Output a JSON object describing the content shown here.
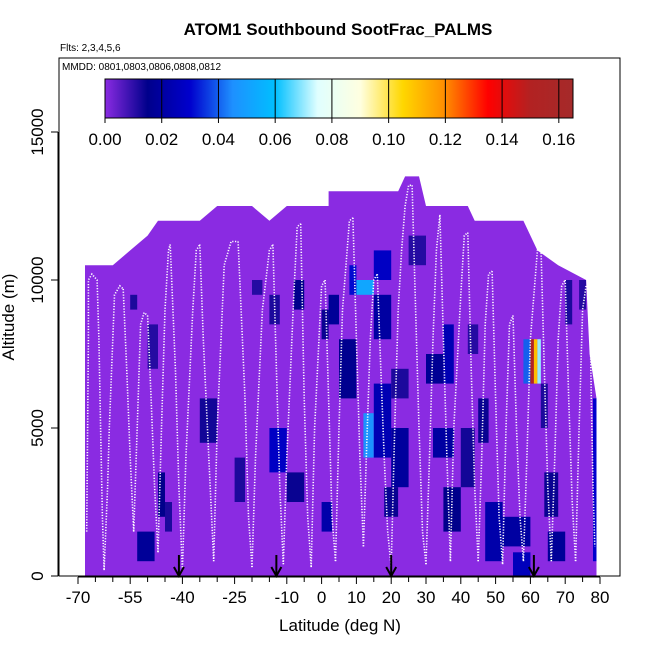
{
  "chart_data": {
    "type": "heatmap",
    "title": "ATOM1 Southbound SootFrac_PALMS",
    "subtitle": "Flts: 2,3,4,5,6",
    "annotation": "MMDD: 0801,0803,0806,0808,0812",
    "xlabel": "Latitude (deg N)",
    "ylabel": "Altitude (m)",
    "xlim": [
      -70,
      80
    ],
    "ylim": [
      0,
      17500
    ],
    "x_ticks": [
      -70,
      -55,
      -40,
      -25,
      -10,
      0,
      10,
      20,
      30,
      40,
      50,
      60,
      70,
      80
    ],
    "x_ticks_minor": [
      -65,
      -60,
      -50,
      -45,
      -35,
      -30,
      -20,
      -15,
      -5,
      5,
      15,
      25,
      35,
      45,
      55,
      65,
      75
    ],
    "y_ticks": [
      0,
      5000,
      10000,
      15000
    ],
    "colorbar": {
      "min": 0.0,
      "max": 0.165,
      "ticks": [
        0.0,
        0.02,
        0.04,
        0.06,
        0.08,
        0.1,
        0.12,
        0.14,
        0.16
      ],
      "tick_labels": [
        "0.00",
        "0.02",
        "0.04",
        "0.06",
        "0.08",
        "0.10",
        "0.12",
        "0.14",
        "0.16"
      ],
      "colors": [
        "#8a2be2",
        "#00008b",
        "#0000cd",
        "#1e90ff",
        "#00bfff",
        "#e0ffff",
        "#ffffe0",
        "#ffd700",
        "#ff8c00",
        "#ff0000",
        "#b22222",
        "#a52a2a"
      ]
    },
    "background_value": 0.0,
    "coverage": [
      [
        -68,
        10500
      ],
      [
        -60,
        10500
      ],
      [
        -55,
        11000
      ],
      [
        -50,
        11500
      ],
      [
        -47,
        12000
      ],
      [
        -35,
        12000
      ],
      [
        -30,
        12500
      ],
      [
        -20,
        12500
      ],
      [
        -15,
        12000
      ],
      [
        -10,
        12500
      ],
      [
        2,
        12500
      ],
      [
        2,
        13000
      ],
      [
        22,
        13000
      ],
      [
        24,
        13500
      ],
      [
        28,
        13500
      ],
      [
        30,
        12500
      ],
      [
        42,
        12500
      ],
      [
        44,
        12000
      ],
      [
        58,
        12000
      ],
      [
        62,
        11000
      ],
      [
        68,
        10500
      ],
      [
        76,
        10000
      ],
      [
        77,
        7500
      ],
      [
        79,
        6000
      ],
      [
        79,
        0
      ],
      [
        -68,
        0
      ]
    ],
    "cells": [
      {
        "lat": [
          -55,
          -53
        ],
        "alt": [
          9000,
          9500
        ],
        "value": 0.012
      },
      {
        "lat": [
          -53,
          -48
        ],
        "alt": [
          500,
          1500
        ],
        "value": 0.018
      },
      {
        "lat": [
          -50,
          -47
        ],
        "alt": [
          7000,
          8500
        ],
        "value": 0.011
      },
      {
        "lat": [
          -47,
          -45
        ],
        "alt": [
          2000,
          3500
        ],
        "value": 0.015
      },
      {
        "lat": [
          -45,
          -43
        ],
        "alt": [
          1500,
          2500
        ],
        "value": 0.012
      },
      {
        "lat": [
          -35,
          -30
        ],
        "alt": [
          4500,
          6000
        ],
        "value": 0.013
      },
      {
        "lat": [
          -25,
          -22
        ],
        "alt": [
          2500,
          4000
        ],
        "value": 0.012
      },
      {
        "lat": [
          -20,
          -17
        ],
        "alt": [
          9500,
          10000
        ],
        "value": 0.011
      },
      {
        "lat": [
          -15,
          -10
        ],
        "alt": [
          3500,
          5000
        ],
        "value": 0.028
      },
      {
        "lat": [
          -15,
          -12
        ],
        "alt": [
          8500,
          9500
        ],
        "value": 0.012
      },
      {
        "lat": [
          -10,
          -5
        ],
        "alt": [
          2500,
          3500
        ],
        "value": 0.014
      },
      {
        "lat": [
          -8,
          -5
        ],
        "alt": [
          9000,
          10000
        ],
        "value": 0.015
      },
      {
        "lat": [
          0,
          2
        ],
        "alt": [
          8000,
          9000
        ],
        "value": 0.014
      },
      {
        "lat": [
          0,
          3
        ],
        "alt": [
          1500,
          2500
        ],
        "value": 0.022
      },
      {
        "lat": [
          2,
          5
        ],
        "alt": [
          8500,
          9500
        ],
        "value": 0.018
      },
      {
        "lat": [
          5,
          10
        ],
        "alt": [
          6000,
          8000
        ],
        "value": 0.016
      },
      {
        "lat": [
          8,
          10
        ],
        "alt": [
          9500,
          10500
        ],
        "value": 0.031
      },
      {
        "lat": [
          10,
          15
        ],
        "alt": [
          9500,
          10000
        ],
        "value": 0.052
      },
      {
        "lat": [
          12,
          15
        ],
        "alt": [
          4000,
          5500
        ],
        "value": 0.046
      },
      {
        "lat": [
          15,
          20
        ],
        "alt": [
          10000,
          11000
        ],
        "value": 0.028
      },
      {
        "lat": [
          15,
          20
        ],
        "alt": [
          8000,
          9500
        ],
        "value": 0.02
      },
      {
        "lat": [
          15,
          20
        ],
        "alt": [
          4000,
          6500
        ],
        "value": 0.024
      },
      {
        "lat": [
          18,
          22
        ],
        "alt": [
          2000,
          3000
        ],
        "value": 0.014
      },
      {
        "lat": [
          20,
          25
        ],
        "alt": [
          6000,
          7000
        ],
        "value": 0.012
      },
      {
        "lat": [
          20,
          25
        ],
        "alt": [
          3000,
          5000
        ],
        "value": 0.019
      },
      {
        "lat": [
          25,
          30
        ],
        "alt": [
          10500,
          11500
        ],
        "value": 0.011
      },
      {
        "lat": [
          30,
          35
        ],
        "alt": [
          6500,
          7500
        ],
        "value": 0.017
      },
      {
        "lat": [
          32,
          38
        ],
        "alt": [
          4000,
          5000
        ],
        "value": 0.02
      },
      {
        "lat": [
          35,
          38
        ],
        "alt": [
          6500,
          8500
        ],
        "value": 0.024
      },
      {
        "lat": [
          35,
          40
        ],
        "alt": [
          1500,
          3000
        ],
        "value": 0.015
      },
      {
        "lat": [
          40,
          44
        ],
        "alt": [
          3000,
          5000
        ],
        "value": 0.013
      },
      {
        "lat": [
          42,
          45
        ],
        "alt": [
          7500,
          8500
        ],
        "value": 0.011
      },
      {
        "lat": [
          45,
          48
        ],
        "alt": [
          4500,
          6000
        ],
        "value": 0.014
      },
      {
        "lat": [
          47,
          52
        ],
        "alt": [
          500,
          2500
        ],
        "value": 0.022
      },
      {
        "lat": [
          52,
          60
        ],
        "alt": [
          1000,
          2000
        ],
        "value": 0.02
      },
      {
        "lat": [
          55,
          60
        ],
        "alt": [
          0,
          800
        ],
        "value": 0.026
      },
      {
        "lat": [
          58,
          60
        ],
        "alt": [
          6500,
          8000
        ],
        "value": 0.04
      },
      {
        "lat": [
          60,
          61
        ],
        "alt": [
          6500,
          8000
        ],
        "value": 0.15
      },
      {
        "lat": [
          61,
          62
        ],
        "alt": [
          6500,
          8000
        ],
        "value": 0.11
      },
      {
        "lat": [
          62,
          63
        ],
        "alt": [
          6500,
          8000
        ],
        "value": 0.07
      },
      {
        "lat": [
          63,
          65
        ],
        "alt": [
          5000,
          6500
        ],
        "value": 0.012
      },
      {
        "lat": [
          64,
          68
        ],
        "alt": [
          2000,
          3500
        ],
        "value": 0.014
      },
      {
        "lat": [
          65,
          70
        ],
        "alt": [
          500,
          1500
        ],
        "value": 0.018
      },
      {
        "lat": [
          70,
          72
        ],
        "alt": [
          8500,
          10000
        ],
        "value": 0.012
      },
      {
        "lat": [
          74,
          76
        ],
        "alt": [
          9000,
          10000
        ],
        "value": 0.011
      },
      {
        "lat": [
          78,
          79
        ],
        "alt": [
          500,
          6000
        ],
        "value": 0.03
      }
    ],
    "flight_tracks": [
      [
        [
          -67.5,
          1500
        ],
        [
          -67,
          8000
        ],
        [
          -67,
          10000
        ],
        [
          -66,
          10200
        ],
        [
          -64.5,
          10000
        ],
        [
          -64,
          8000
        ],
        [
          -63.5,
          5000
        ],
        [
          -63,
          2000
        ],
        [
          -62.5,
          200
        ]
      ],
      [
        [
          -62.5,
          200
        ],
        [
          -61.5,
          3000
        ],
        [
          -61,
          5000
        ],
        [
          -60,
          8000
        ],
        [
          -59.5,
          9500
        ],
        [
          -58,
          9800
        ],
        [
          -57,
          9700
        ]
      ],
      [
        [
          -57,
          9700
        ],
        [
          -56,
          7000
        ],
        [
          -55,
          4000
        ],
        [
          -54,
          1500
        ]
      ],
      [
        [
          -54,
          1500
        ],
        [
          -53,
          5000
        ],
        [
          -52,
          8500
        ],
        [
          -51,
          8900
        ],
        [
          -50,
          8800
        ]
      ],
      [
        [
          -50,
          8800
        ],
        [
          -49,
          6000
        ],
        [
          -48,
          3000
        ],
        [
          -47,
          800
        ]
      ],
      [
        [
          -47,
          800
        ],
        [
          -46,
          5000
        ],
        [
          -45,
          9000
        ],
        [
          -44,
          11000
        ],
        [
          -43.5,
          11200
        ]
      ],
      [
        [
          -43.5,
          11200
        ],
        [
          -42,
          7000
        ],
        [
          -41,
          3000
        ],
        [
          -40,
          200
        ]
      ],
      [
        [
          -40,
          200
        ],
        [
          -39,
          4000
        ],
        [
          -37,
          9000
        ],
        [
          -36,
          11000
        ],
        [
          -35,
          11200
        ]
      ],
      [
        [
          -35,
          11200
        ],
        [
          -34,
          8000
        ],
        [
          -32,
          3000
        ],
        [
          -31,
          500
        ]
      ],
      [
        [
          -31,
          500
        ],
        [
          -30,
          5000
        ],
        [
          -28,
          10500
        ],
        [
          -26,
          11300
        ],
        [
          -24,
          11300
        ]
      ],
      [
        [
          -24,
          11300
        ],
        [
          -22,
          6000
        ],
        [
          -21,
          2000
        ],
        [
          -20,
          300
        ]
      ],
      [
        [
          -20,
          300
        ],
        [
          -19,
          4000
        ],
        [
          -17,
          9000
        ],
        [
          -15,
          11000
        ],
        [
          -14,
          11200
        ]
      ],
      [
        [
          -14,
          11200
        ],
        [
          -13,
          7000
        ],
        [
          -12,
          3000
        ],
        [
          -11,
          400
        ]
      ],
      [
        [
          -11,
          400
        ],
        [
          -10,
          4000
        ],
        [
          -8,
          9500
        ],
        [
          -7,
          11800
        ],
        [
          -6,
          11900
        ]
      ],
      [
        [
          -6,
          11900
        ],
        [
          -5,
          6000
        ],
        [
          -4,
          2000
        ],
        [
          -3,
          300
        ]
      ],
      [
        [
          -3,
          300
        ],
        [
          -2,
          5000
        ],
        [
          0,
          9800
        ],
        [
          1,
          10000
        ]
      ],
      [
        [
          1,
          10000
        ],
        [
          2,
          6000
        ],
        [
          3,
          2000
        ],
        [
          4,
          500
        ]
      ],
      [
        [
          4,
          500
        ],
        [
          5,
          5000
        ],
        [
          6,
          9000
        ],
        [
          7,
          10500
        ],
        [
          8,
          12000
        ],
        [
          9,
          12100
        ]
      ],
      [
        [
          9,
          12100
        ],
        [
          10,
          8000
        ],
        [
          11,
          4000
        ],
        [
          12,
          1000
        ]
      ],
      [
        [
          12,
          1000
        ],
        [
          13,
          4500
        ],
        [
          14,
          8000
        ],
        [
          15,
          10000
        ],
        [
          16,
          10200
        ]
      ],
      [
        [
          16,
          10200
        ],
        [
          17,
          7000
        ],
        [
          18,
          4000
        ],
        [
          19,
          1500
        ],
        [
          20,
          300
        ]
      ],
      [
        [
          20,
          300
        ],
        [
          21,
          5000
        ],
        [
          22,
          9000
        ],
        [
          23,
          11000
        ],
        [
          24,
          12500
        ],
        [
          25,
          13200
        ],
        [
          26,
          13200
        ]
      ],
      [
        [
          26,
          13200
        ],
        [
          27,
          9000
        ],
        [
          28,
          5000
        ],
        [
          29,
          1500
        ],
        [
          30,
          400
        ]
      ],
      [
        [
          30,
          400
        ],
        [
          31,
          4000
        ],
        [
          32,
          8000
        ],
        [
          33,
          11000
        ],
        [
          34,
          12200
        ]
      ],
      [
        [
          34,
          12200
        ],
        [
          35,
          8000
        ],
        [
          36,
          4000
        ],
        [
          37,
          500
        ]
      ],
      [
        [
          37,
          500
        ],
        [
          38,
          5000
        ],
        [
          40,
          9500
        ],
        [
          41,
          11500
        ],
        [
          42,
          11600
        ]
      ],
      [
        [
          42,
          11600
        ],
        [
          43,
          7000
        ],
        [
          44,
          3000
        ],
        [
          45,
          500
        ]
      ],
      [
        [
          45,
          500
        ],
        [
          46,
          4000
        ],
        [
          47,
          8500
        ],
        [
          48,
          10200
        ],
        [
          49,
          10300
        ]
      ],
      [
        [
          49,
          10300
        ],
        [
          50,
          6000
        ],
        [
          51,
          2000
        ],
        [
          52,
          400
        ]
      ],
      [
        [
          52,
          400
        ],
        [
          53,
          5000
        ],
        [
          54,
          8500
        ],
        [
          55,
          8800
        ]
      ],
      [
        [
          55,
          8800
        ],
        [
          56,
          5000
        ],
        [
          57,
          2000
        ],
        [
          58,
          500
        ]
      ],
      [
        [
          58,
          500
        ],
        [
          59,
          4000
        ],
        [
          60,
          8000
        ],
        [
          61,
          9500
        ],
        [
          62,
          11000
        ],
        [
          63,
          11300
        ]
      ],
      [
        [
          63,
          11300
        ],
        [
          64,
          7000
        ],
        [
          65,
          3000
        ],
        [
          66,
          500
        ]
      ],
      [
        [
          66,
          500
        ],
        [
          67,
          4000
        ],
        [
          68,
          8000
        ],
        [
          69,
          9800
        ],
        [
          70,
          10000
        ]
      ],
      [
        [
          70,
          10000
        ],
        [
          71,
          6000
        ],
        [
          72,
          2500
        ],
        [
          73,
          500
        ]
      ],
      [
        [
          73,
          500
        ],
        [
          74,
          5000
        ],
        [
          75,
          9000
        ],
        [
          76,
          9800
        ],
        [
          77,
          9900
        ]
      ],
      [
        [
          77,
          9900
        ],
        [
          77.5,
          6000
        ],
        [
          78,
          3000
        ],
        [
          78.5,
          1000
        ]
      ]
    ],
    "arrow_markers_lat": [
      -41,
      -13,
      20,
      61
    ]
  }
}
